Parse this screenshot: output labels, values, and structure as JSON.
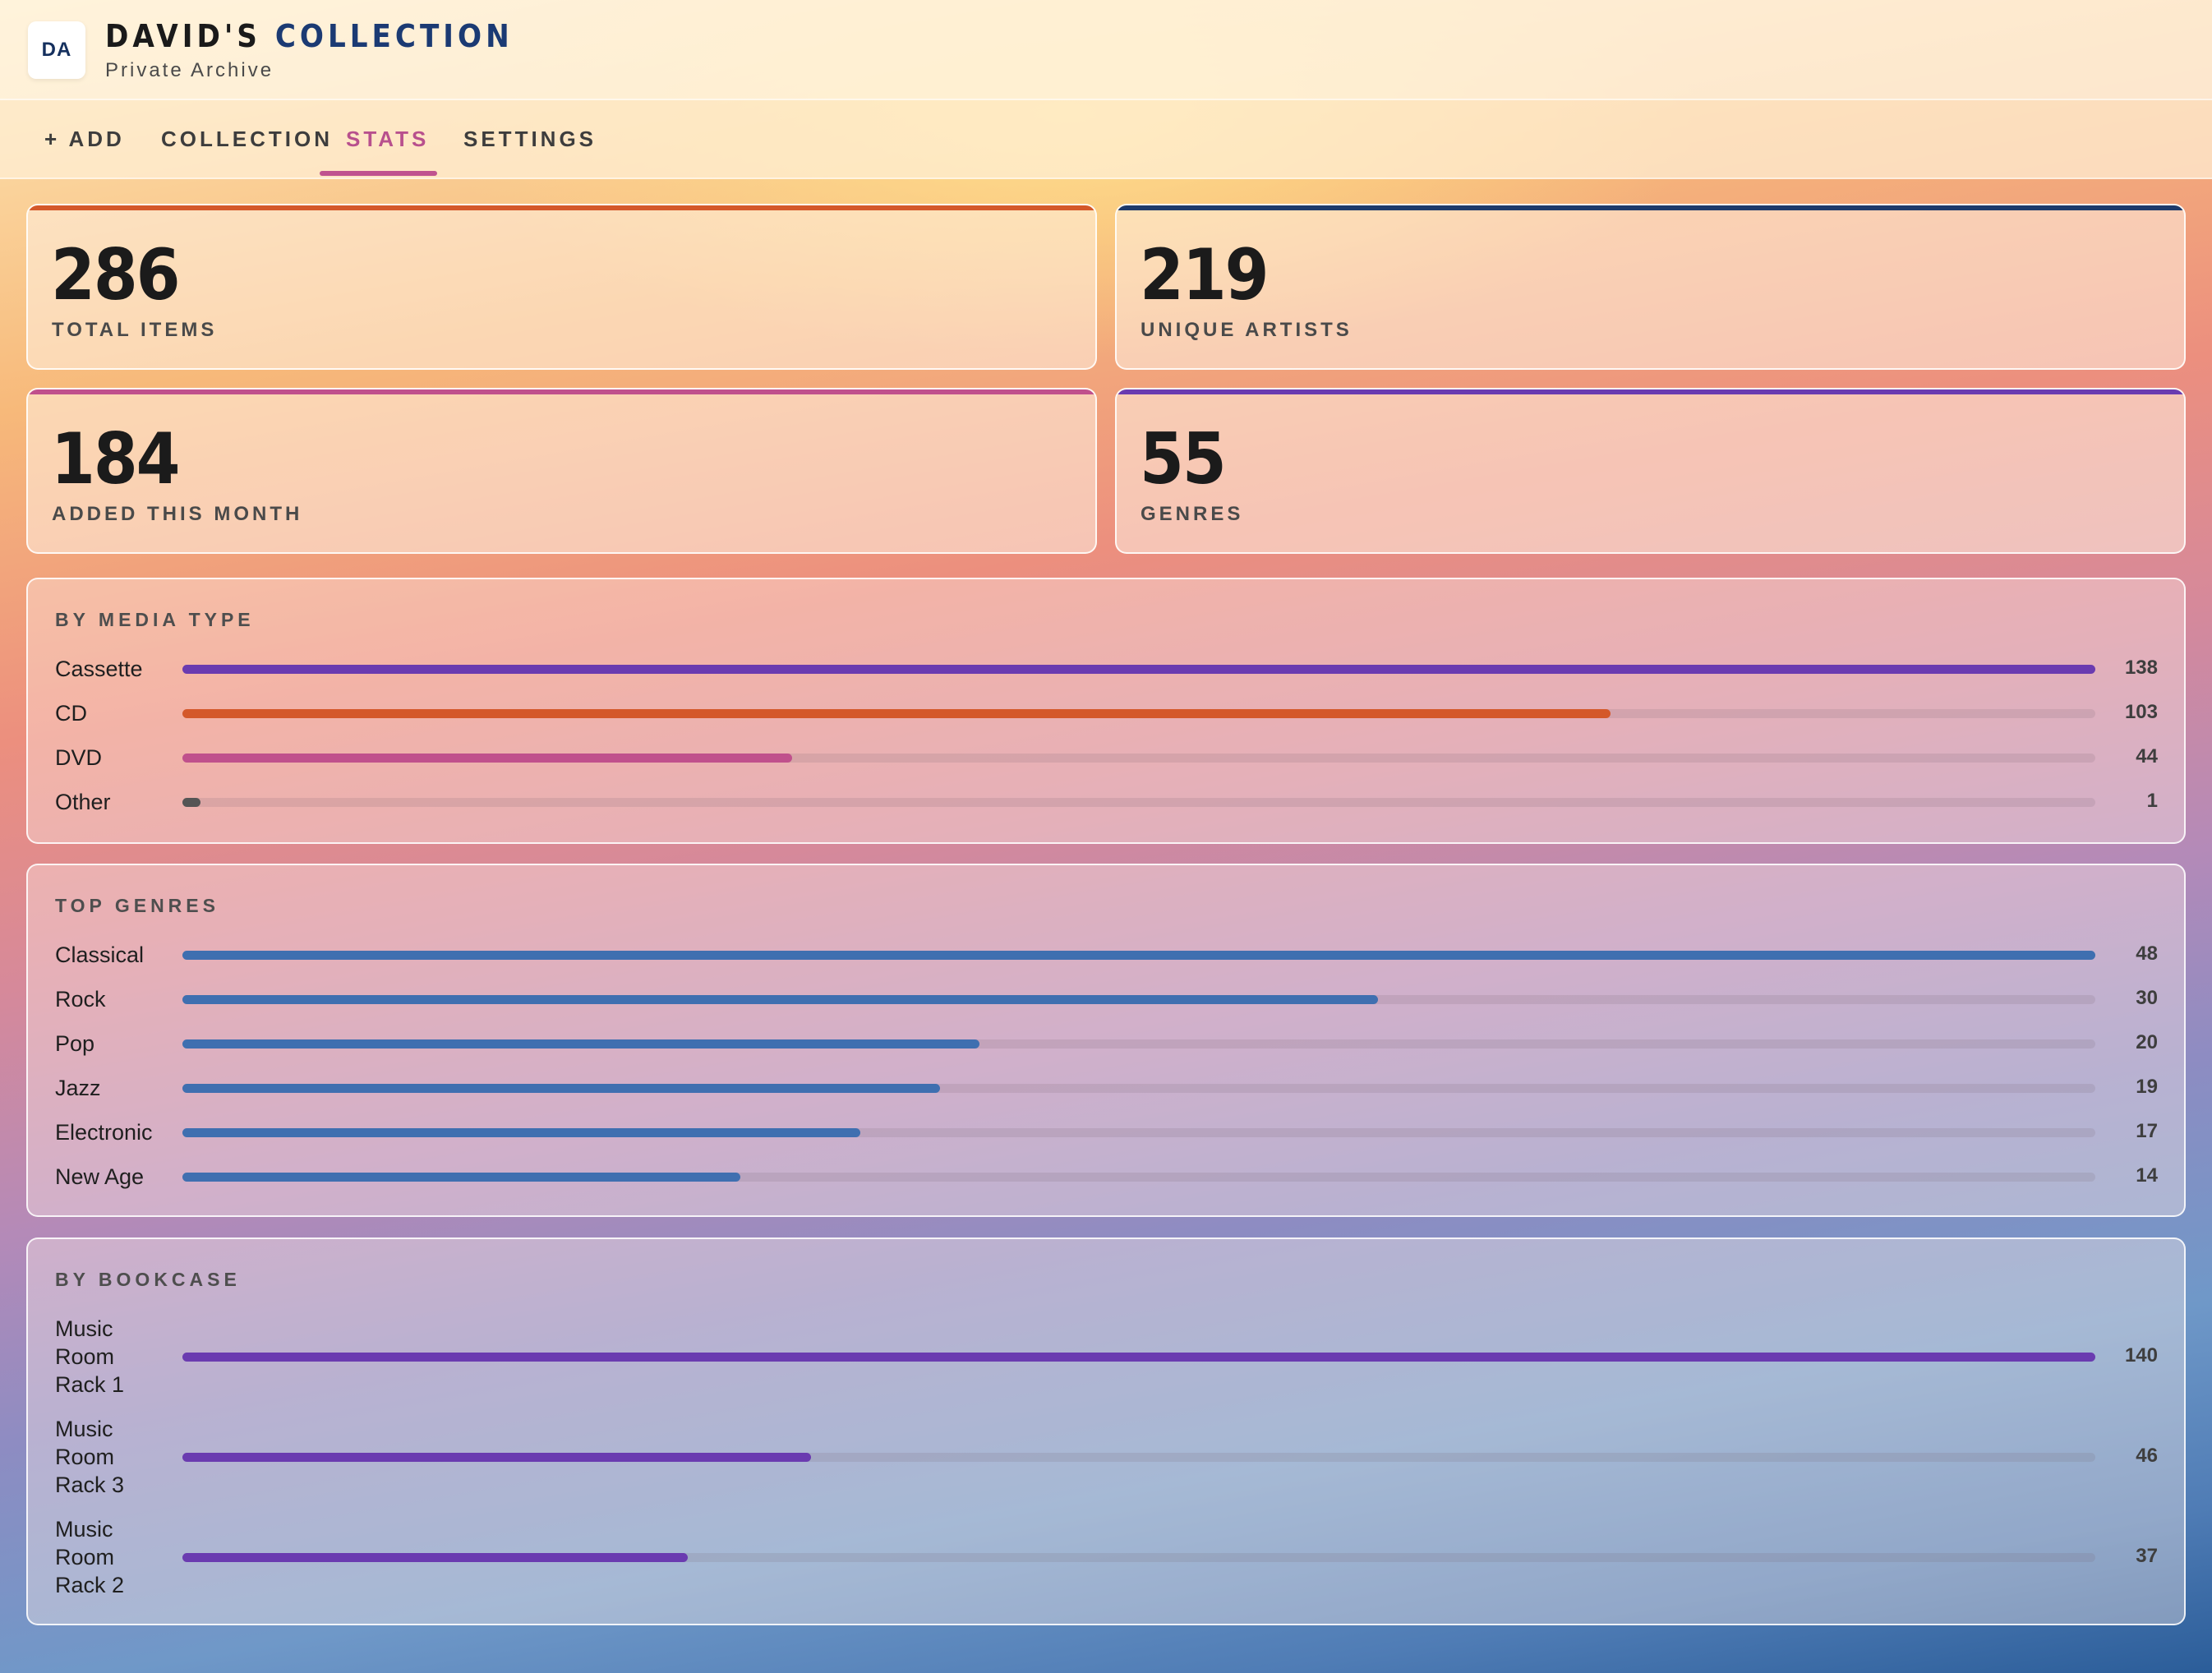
{
  "header": {
    "logo_initials": "DA",
    "title_primary": "DAVID'S",
    "title_accent": "COLLECTION",
    "subtitle": "Private Archive"
  },
  "nav": {
    "items": [
      {
        "label": "+ ADD",
        "active": false
      },
      {
        "label": "COLLECTION",
        "active": false
      },
      {
        "label": "STATS",
        "active": true
      },
      {
        "label": "SETTINGS",
        "active": false
      }
    ]
  },
  "stats": [
    {
      "value": "286",
      "label": "TOTAL ITEMS",
      "accent": "#d4582a"
    },
    {
      "value": "219",
      "label": "UNIQUE ARTISTS",
      "accent": "#1d3a6b"
    },
    {
      "value": "184",
      "label": "ADDED THIS MONTH",
      "accent": "#c0508c"
    },
    {
      "value": "55",
      "label": "GENRES",
      "accent": "#6a3bb0"
    }
  ],
  "media_type": {
    "title": "BY MEDIA TYPE",
    "max": 138,
    "rows": [
      {
        "label": "Cassette",
        "value": 138,
        "color": "#6a3bb0"
      },
      {
        "label": "CD",
        "value": 103,
        "color": "#d4582a"
      },
      {
        "label": "DVD",
        "value": 44,
        "color": "#c0508c"
      },
      {
        "label": "Other",
        "value": 1,
        "color": "#555555"
      }
    ]
  },
  "top_genres": {
    "title": "TOP GENRES",
    "max": 48,
    "color": "#3f6fb0",
    "rows": [
      {
        "label": "Classical",
        "value": 48
      },
      {
        "label": "Rock",
        "value": 30
      },
      {
        "label": "Pop",
        "value": 20
      },
      {
        "label": "Jazz",
        "value": 19
      },
      {
        "label": "Electronic",
        "value": 17
      },
      {
        "label": "New Age",
        "value": 14
      }
    ]
  },
  "bookcase": {
    "title": "BY BOOKCASE",
    "max": 140,
    "color": "#6a3bb0",
    "rows": [
      {
        "label_lines": [
          "Music",
          "Room",
          "Rack 1"
        ],
        "value": 140
      },
      {
        "label_lines": [
          "Music",
          "Room",
          "Rack 3"
        ],
        "value": 46
      },
      {
        "label_lines": [
          "Music",
          "Room",
          "Rack 2"
        ],
        "value": 37
      }
    ]
  }
}
